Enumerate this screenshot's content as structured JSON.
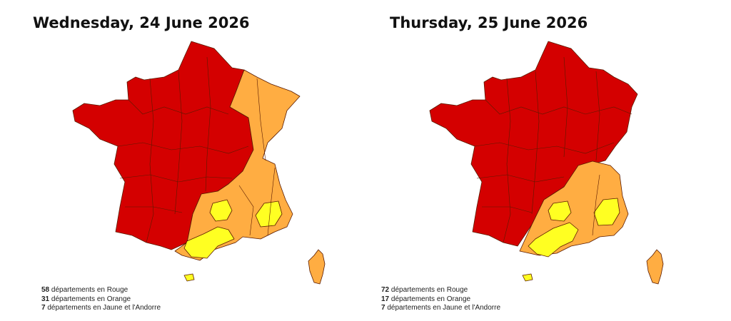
{
  "colors": {
    "rouge": "#d40000",
    "orange": "#ffad42",
    "jaune": "#ffff22"
  },
  "panels": [
    {
      "title": "Wednesday, 24 June 2026",
      "legend": [
        {
          "count": "58",
          "text": "départements en Rouge"
        },
        {
          "count": "31",
          "text": "départements en Orange"
        },
        {
          "count": "7",
          "text": "départements en Jaune et l'Andorre"
        }
      ]
    },
    {
      "title": "Thursday, 25 June 2026",
      "legend": [
        {
          "count": "72",
          "text": "départements en Rouge"
        },
        {
          "count": "17",
          "text": "départements en Orange"
        },
        {
          "count": "7",
          "text": "départements en Jaune et l'Andorre"
        }
      ]
    }
  ]
}
